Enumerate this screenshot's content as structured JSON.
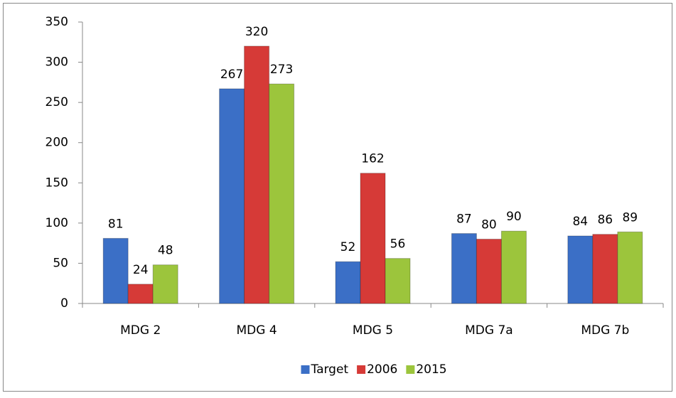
{
  "chart_data": {
    "type": "bar",
    "categories": [
      "MDG 2",
      "MDG 4",
      "MDG 5",
      "MDG 7a",
      "MDG 7b"
    ],
    "series": [
      {
        "name": "Target",
        "color": "#3b6fc6",
        "values": [
          81,
          267,
          52,
          87,
          84
        ]
      },
      {
        "name": "2006",
        "color": "#d63a37",
        "values": [
          24,
          320,
          162,
          80,
          86
        ]
      },
      {
        "name": "2015",
        "color": "#9cc53c",
        "values": [
          48,
          273,
          56,
          90,
          89
        ]
      }
    ],
    "ylim": [
      0,
      350
    ],
    "yticks": [
      0,
      50,
      100,
      150,
      200,
      250,
      300,
      350
    ],
    "grid": false,
    "legend": "bottom"
  }
}
